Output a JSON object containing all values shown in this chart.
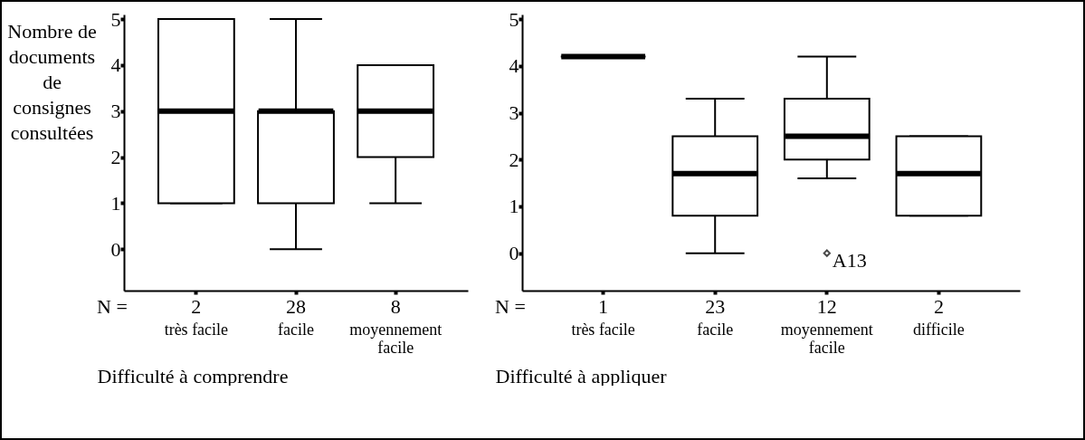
{
  "chart_data": [
    {
      "type": "box",
      "xlabel": "Difficulté à comprendre",
      "ylabel": "Nombre de documents de consignes consultées",
      "categories": [
        "très facile",
        "facile",
        "moyennement facile"
      ],
      "ylim": [
        -0.9,
        5.1
      ],
      "yticks": [
        0,
        1,
        2,
        3,
        4,
        5
      ],
      "boxes": [
        {
          "low": 1,
          "q1": 1,
          "median": 3,
          "q3": 5,
          "high": 5
        },
        {
          "low": 0,
          "q1": 1,
          "median": 3,
          "q3": 3,
          "high": 5
        },
        {
          "low": 1,
          "q1": 2,
          "median": 3,
          "q3": 4,
          "high": 4
        }
      ],
      "annotations": [
        "N =",
        "2",
        "28",
        "8"
      ]
    },
    {
      "type": "box",
      "xlabel": "Difficulté à appliquer",
      "categories": [
        "très facile",
        "facile",
        "moyennement facile",
        "difficile"
      ],
      "ylim": [
        -0.8,
        5.1
      ],
      "yticks": [
        0,
        1,
        2,
        3,
        4,
        5
      ],
      "boxes": [
        {
          "low": 4.2,
          "q1": 4.2,
          "median": 4.2,
          "q3": 4.2,
          "high": 4.2
        },
        {
          "low": 0,
          "q1": 0.8,
          "median": 1.7,
          "q3": 2.5,
          "high": 3.3
        },
        {
          "low": 1.6,
          "q1": 2,
          "median": 2.5,
          "q3": 3.3,
          "high": 4.2,
          "outliers": [
            0
          ]
        },
        {
          "low": 0.8,
          "q1": 0.8,
          "median": 1.7,
          "q3": 2.5,
          "high": 2.5
        }
      ],
      "annotations": [
        "N =",
        "1",
        "23",
        "12",
        "2",
        "A13"
      ]
    }
  ]
}
